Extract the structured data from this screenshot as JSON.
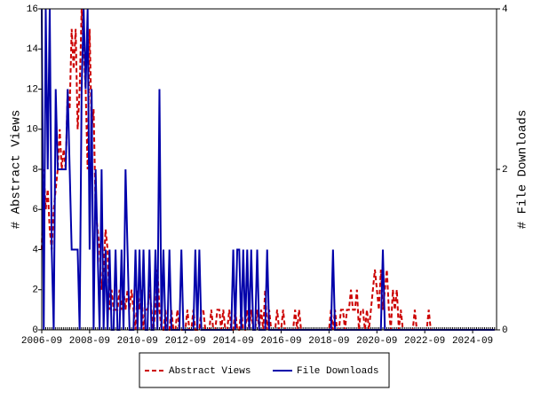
{
  "chart_data": {
    "type": "line",
    "ylabel": "# Abstract Views",
    "y2label": "# File Downloads",
    "x": [
      "2006-09",
      "2006-10",
      "2006-11",
      "2006-12",
      "2007-01",
      "2007-02",
      "2007-03",
      "2007-04",
      "2007-05",
      "2007-06",
      "2007-07",
      "2007-08",
      "2007-09",
      "2007-10",
      "2007-11",
      "2007-12",
      "2008-01",
      "2008-02",
      "2008-03",
      "2008-04",
      "2008-05",
      "2008-06",
      "2008-07",
      "2008-08",
      "2008-09",
      "2008-10",
      "2008-11",
      "2008-12",
      "2009-01",
      "2009-02",
      "2009-03",
      "2009-04",
      "2009-05",
      "2009-06",
      "2009-07",
      "2009-08",
      "2009-09",
      "2009-10",
      "2009-11",
      "2009-12",
      "2010-01",
      "2010-02",
      "2010-03",
      "2010-04",
      "2010-05",
      "2010-06",
      "2010-07",
      "2010-08",
      "2010-09",
      "2010-10",
      "2010-11",
      "2010-12",
      "2011-01",
      "2011-02",
      "2011-03",
      "2011-04",
      "2011-05",
      "2011-06",
      "2011-07",
      "2011-08",
      "2011-09",
      "2011-10",
      "2011-11",
      "2011-12",
      "2012-01",
      "2012-02",
      "2012-03",
      "2012-04",
      "2012-05",
      "2012-06",
      "2012-07",
      "2012-08",
      "2012-09",
      "2012-10",
      "2012-11",
      "2012-12",
      "2013-01",
      "2013-02",
      "2013-03",
      "2013-04",
      "2013-05",
      "2013-06",
      "2013-07",
      "2013-08",
      "2013-09",
      "2013-10",
      "2013-11",
      "2013-12",
      "2014-01",
      "2014-02",
      "2014-03",
      "2014-04",
      "2014-05",
      "2014-06",
      "2014-07",
      "2014-08",
      "2014-09",
      "2014-10",
      "2014-11",
      "2014-12",
      "2015-01",
      "2015-02",
      "2015-03",
      "2015-04",
      "2015-05",
      "2015-06",
      "2015-07",
      "2015-08",
      "2015-09",
      "2015-10",
      "2015-11",
      "2015-12",
      "2016-01",
      "2016-02",
      "2016-03",
      "2016-04",
      "2016-05",
      "2016-06",
      "2016-07",
      "2016-08",
      "2016-09",
      "2016-10",
      "2016-11",
      "2016-12",
      "2017-01",
      "2017-02",
      "2017-03",
      "2017-04",
      "2017-05",
      "2017-06",
      "2017-07",
      "2017-08",
      "2017-09",
      "2017-10",
      "2017-11",
      "2017-12",
      "2018-01",
      "2018-02",
      "2018-03",
      "2018-04",
      "2018-05",
      "2018-06",
      "2018-07",
      "2018-08",
      "2018-09",
      "2018-10",
      "2018-11",
      "2018-12",
      "2019-01",
      "2019-02",
      "2019-03",
      "2019-04",
      "2019-05",
      "2019-06",
      "2019-07",
      "2019-08",
      "2019-09",
      "2019-10",
      "2019-11",
      "2019-12",
      "2020-01",
      "2020-02",
      "2020-03",
      "2020-04",
      "2020-05",
      "2020-06",
      "2020-07",
      "2020-08",
      "2020-09",
      "2020-10",
      "2020-11",
      "2020-12",
      "2021-01",
      "2021-02",
      "2021-03",
      "2021-04",
      "2021-05",
      "2021-06",
      "2021-07",
      "2021-08",
      "2021-09",
      "2021-10",
      "2021-11",
      "2021-12",
      "2022-01",
      "2022-02",
      "2022-03",
      "2022-04",
      "2022-05",
      "2022-06",
      "2022-07",
      "2022-08",
      "2022-09",
      "2022-10",
      "2022-11",
      "2022-12",
      "2023-01",
      "2023-02",
      "2023-03",
      "2023-04",
      "2023-05",
      "2023-06",
      "2023-07",
      "2023-08",
      "2023-09",
      "2023-10",
      "2023-11",
      "2023-12",
      "2024-01",
      "2024-02",
      "2024-03",
      "2024-04",
      "2024-05",
      "2024-06",
      "2024-07",
      "2024-08",
      "2024-09",
      "2024-10",
      "2024-11",
      "2024-12",
      "2025-01",
      "2025-02",
      "2025-03",
      "2025-04",
      "2025-05",
      "2025-06",
      "2025-07",
      "2025-08"
    ],
    "series": [
      {
        "name": "Abstract Views",
        "color": "#cc0000",
        "dashed": true,
        "values": [
          4,
          8,
          6,
          7,
          5,
          4,
          6,
          7,
          8,
          10,
          8,
          9,
          8,
          12,
          11,
          15,
          13,
          15,
          10,
          12,
          16,
          14,
          12,
          8,
          15,
          10,
          11,
          6,
          5,
          4,
          2,
          3,
          5,
          4,
          1,
          2,
          1,
          1,
          1,
          2,
          1,
          2,
          1,
          2,
          1,
          2,
          1,
          0,
          2,
          1,
          2,
          0,
          1,
          1,
          2,
          1,
          0,
          1,
          3,
          1,
          0,
          0,
          1,
          0,
          0,
          1,
          0,
          0,
          1,
          0,
          0,
          0,
          0,
          1,
          0,
          0,
          1,
          0,
          0,
          0,
          1,
          1,
          0,
          0,
          0,
          1,
          0,
          0,
          1,
          1,
          0,
          1,
          0,
          0,
          1,
          0,
          0,
          1,
          0,
          0,
          1,
          0,
          0,
          1,
          0,
          1,
          0,
          0,
          1,
          0,
          1,
          0,
          2,
          0,
          1,
          0,
          0,
          0,
          1,
          0,
          0,
          1,
          0,
          0,
          0,
          0,
          0,
          1,
          0,
          1,
          0,
          0,
          0,
          0,
          0,
          0,
          0,
          0,
          0,
          0,
          0,
          0,
          0,
          0,
          0,
          1,
          0,
          1,
          0,
          0,
          1,
          1,
          0,
          1,
          1,
          2,
          1,
          1,
          2,
          0,
          1,
          1,
          0,
          1,
          0,
          1,
          2,
          3,
          2,
          1,
          3,
          1,
          2,
          3,
          1,
          0,
          2,
          1,
          2,
          0,
          1,
          0,
          0,
          0,
          0,
          0,
          0,
          1,
          0,
          0,
          0,
          0,
          0,
          0,
          1,
          0,
          0,
          0,
          0,
          0,
          0,
          0,
          0,
          0,
          0,
          0,
          0,
          0,
          0,
          0,
          0,
          0,
          0,
          0,
          0,
          0,
          0,
          0,
          0,
          0,
          0,
          0,
          0,
          0,
          0,
          0,
          0,
          0
        ]
      },
      {
        "name": "File Downloads",
        "color": "#0000aa",
        "dashed": false,
        "axis": "y2",
        "values": [
          4,
          0,
          4,
          2,
          4,
          1,
          0,
          3,
          2,
          2,
          2,
          2,
          2,
          3,
          2,
          1,
          1,
          1,
          1,
          0,
          3,
          4,
          3,
          4,
          1,
          3,
          0,
          2,
          1,
          0,
          2,
          0,
          1,
          0,
          1,
          0,
          0,
          1,
          0,
          0,
          1,
          0,
          2,
          1,
          0,
          0,
          0,
          1,
          0,
          1,
          0,
          1,
          0,
          0,
          1,
          0,
          0,
          1,
          0,
          3,
          0,
          1,
          0,
          0,
          1,
          0,
          0,
          0,
          0,
          0,
          1,
          0,
          0,
          0,
          0,
          0,
          0,
          1,
          0,
          1,
          0,
          0,
          0,
          0,
          0,
          0,
          0,
          0,
          0,
          0,
          0,
          0,
          0,
          0,
          0,
          0,
          1,
          0,
          1,
          1,
          0,
          1,
          0,
          1,
          0,
          1,
          0,
          0,
          1,
          0,
          0,
          0,
          0,
          1,
          0,
          0,
          0,
          0,
          0,
          0,
          0,
          0,
          0,
          0,
          0,
          0,
          0,
          0,
          0,
          0,
          0,
          0,
          0,
          0,
          0,
          0,
          0,
          0,
          0,
          0,
          0,
          0,
          0,
          0,
          0,
          0,
          1,
          0,
          0,
          0,
          0,
          0,
          0,
          0,
          0,
          0,
          0,
          0,
          0,
          0,
          0,
          0,
          0,
          0,
          0,
          0,
          0,
          0,
          0,
          0,
          0,
          1,
          0,
          0,
          0,
          0,
          0,
          0,
          0,
          0,
          0,
          0,
          0,
          0,
          0,
          0,
          0,
          0,
          0,
          0,
          0,
          0,
          0,
          0,
          0,
          0,
          0,
          0,
          0,
          0,
          0,
          0,
          0,
          0,
          0,
          0,
          0,
          0,
          0,
          0,
          0,
          0,
          0,
          0,
          0,
          0,
          0,
          0,
          0,
          0,
          0,
          0,
          0,
          0,
          0,
          0,
          0,
          0
        ]
      }
    ],
    "xlim": [
      "2006-09",
      "2025-09"
    ],
    "xticks": [
      "2006-09",
      "2008-09",
      "2010-09",
      "2012-09",
      "2014-09",
      "2016-09",
      "2018-09",
      "2020-09",
      "2022-09",
      "2024-09"
    ],
    "ylim": [
      0,
      16
    ],
    "yticks": [
      0,
      2,
      4,
      6,
      8,
      10,
      12,
      14,
      16
    ],
    "y2lim": [
      0,
      4
    ],
    "y2ticks": [
      0,
      2,
      4
    ],
    "legend": "bottom"
  }
}
